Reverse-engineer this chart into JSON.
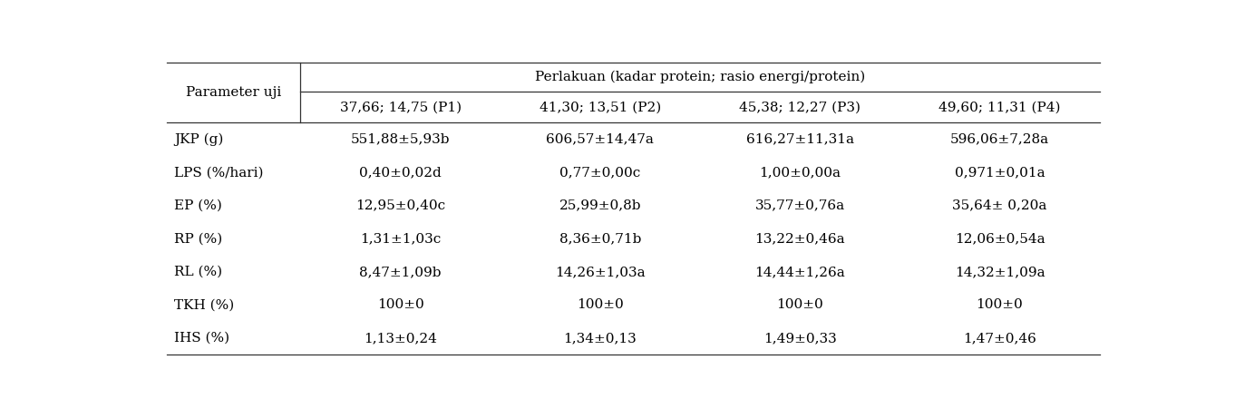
{
  "title": "Perlakuan (kadar protein; rasio energi/protein)",
  "col_header_row1": "Parameter uji",
  "col_headers": [
    "37,66; 14,75 (P1)",
    "41,30; 13,51 (P2)",
    "45,38; 12,27 (P3)",
    "49,60; 11,31 (P4)"
  ],
  "row_labels": [
    "JKP (g)",
    "LPS (%/hari)",
    "EP (%)",
    "RP (%)",
    "RL (%)",
    "TKH (%)",
    "IHS (%)"
  ],
  "data": [
    [
      "551,88±5,93b",
      "606,57±14,47a",
      "616,27±11,31a",
      "596,06±7,28a"
    ],
    [
      "0,40±0,02d",
      "0,77±0,00c",
      "1,00±0,00a",
      "0,971±0,01a"
    ],
    [
      "12,95±0,40c",
      "25,99±0,8b",
      "35,77±0,76a",
      "35,64± 0,20a"
    ],
    [
      "1,31±1,03c",
      "8,36±0,71b",
      "13,22±0,46a",
      "12,06±0,54a"
    ],
    [
      "8,47±1,09b",
      "14,26±1,03a",
      "14,44±1,26a",
      "14,32±1,09a"
    ],
    [
      "100±0",
      "100±0",
      "100±0",
      "100±0"
    ],
    [
      "1,13±0,24",
      "1,34±0,13",
      "1,49±0,33",
      "1,47±0,46"
    ]
  ],
  "bg_color": "#ffffff",
  "text_color": "#000000",
  "font_size": 11.0,
  "header_font_size": 11.0,
  "figsize": [
    13.62,
    4.5
  ],
  "dpi": 100
}
